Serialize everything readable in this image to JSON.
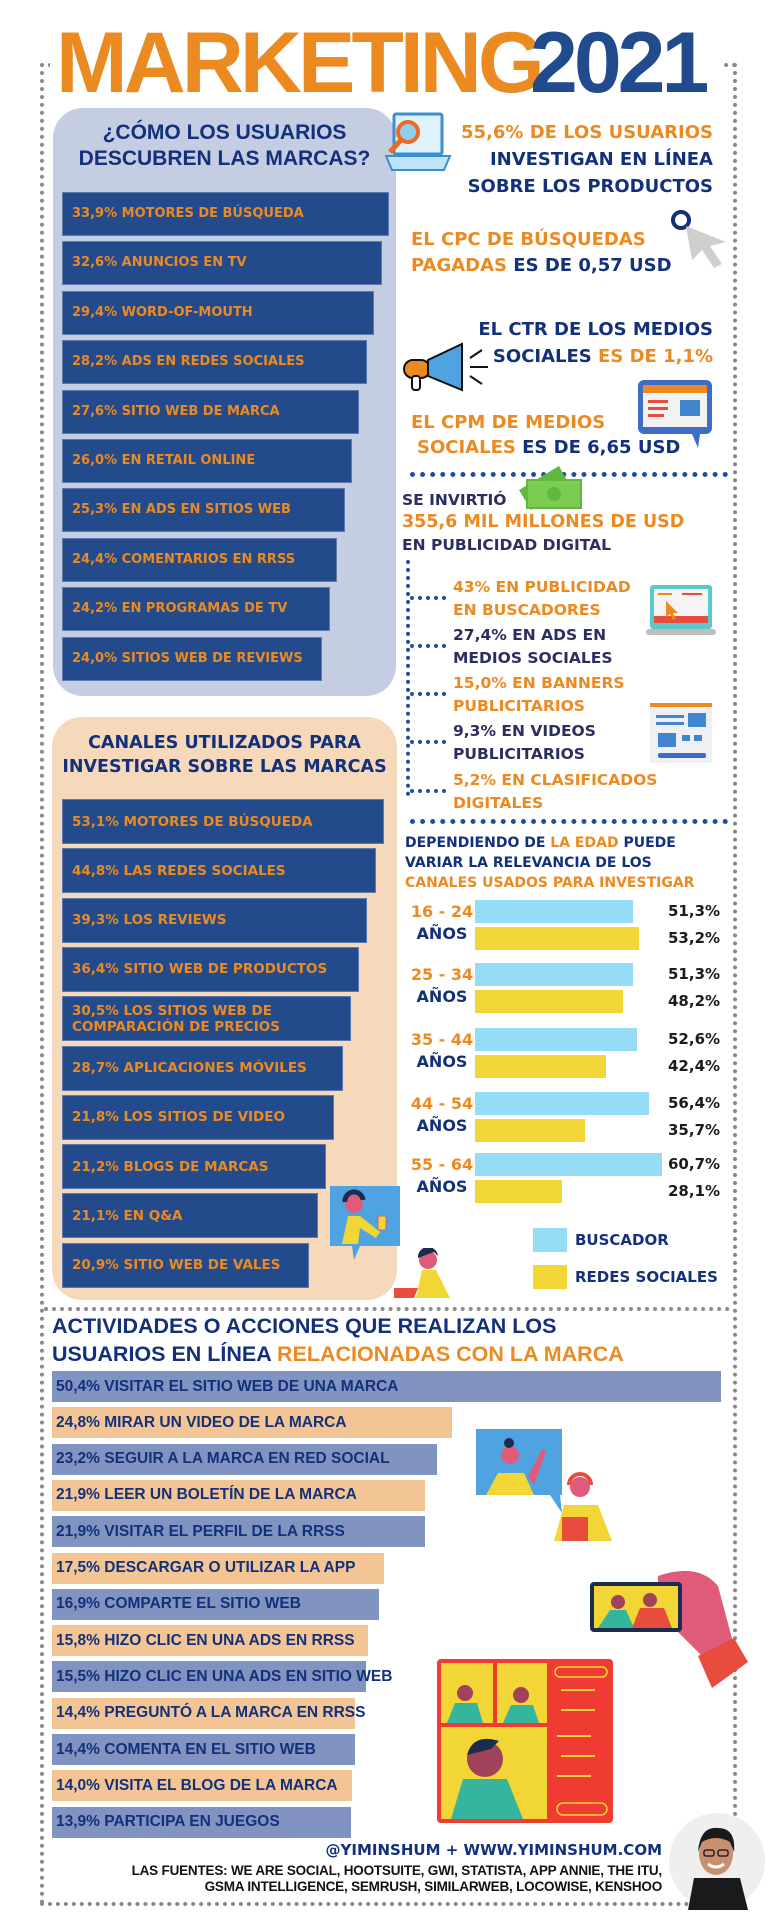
{
  "title": {
    "part1": "MARKETING",
    "part2": "2021"
  },
  "colors": {
    "orange": "#ec8a22",
    "navy": "#13307b",
    "bar_navy": "#234b8c",
    "panel_blue": "#c5cde2",
    "panel_peach": "#f6d8ba",
    "buscador": "#97dcf5",
    "redes": "#f2d636",
    "activity_blue": "#8194c1",
    "activity_peach": "#f4c594"
  },
  "discover": {
    "title_line1": "¿CÓMO LOS USUARIOS",
    "title_line2": "DESCUBREN LAS MARCAS?",
    "items": [
      {
        "pct": "33,9%",
        "label": "MOTORES DE BÚSQUEDA"
      },
      {
        "pct": "32,6%",
        "label": "ANUNCIOS EN TV"
      },
      {
        "pct": "29,4%",
        "label": "WORD-OF-MOUTH"
      },
      {
        "pct": "28,2%",
        "label": "ADS EN REDES SOCIALES"
      },
      {
        "pct": "27,6%",
        "label": "SITIO WEB DE MARCA"
      },
      {
        "pct": "26,0%",
        "label": "EN RETAIL ONLINE"
      },
      {
        "pct": "25,3%",
        "label": "EN ADS EN SITIOS WEB"
      },
      {
        "pct": "24,4%",
        "label": "COMENTARIOS EN RRSS"
      },
      {
        "pct": "24,2%",
        "label": "EN PROGRAMAS DE TV"
      },
      {
        "pct": "24,0%",
        "label": "SITIOS WEB DE REVIEWS"
      }
    ]
  },
  "channels": {
    "title_line1": "CANALES UTILIZADOS PARA",
    "title_line2": "INVESTIGAR SOBRE LAS MARCAS",
    "items": [
      {
        "pct": "53,1%",
        "label": "MOTORES DE BÚSQUEDA"
      },
      {
        "pct": "44,8%",
        "label": "LAS REDES SOCIALES"
      },
      {
        "pct": "39,3%",
        "label": "LOS REVIEWS"
      },
      {
        "pct": "36,4%",
        "label": "SITIO WEB DE PRODUCTOS"
      },
      {
        "pct": "30,5%",
        "label": "LOS SITIOS WEB DE",
        "label2": "COMPARACIÓN DE PRECIOS"
      },
      {
        "pct": "28,7%",
        "label": "APLICACIONES MÓVILES"
      },
      {
        "pct": "21,8%",
        "label": "LOS SITIOS DE VIDEO"
      },
      {
        "pct": "21,2%",
        "label": "BLOGS DE MARCAS"
      },
      {
        "pct": "21,1%",
        "label": "EN Q&A"
      },
      {
        "pct": "20,9%",
        "label": "SITIO WEB DE VALES"
      }
    ]
  },
  "stats": {
    "research": {
      "line1": "55,6% DE LOS USUARIOS",
      "line2": "INVESTIGAN EN LÍNEA",
      "line3": "SOBRE LOS PRODUCTOS"
    },
    "cpc": {
      "line1": "EL CPC DE BÚSQUEDAS",
      "line2_orange": "PAGADAS",
      "line2_navy": "ES DE 0,57 USD"
    },
    "ctr": {
      "line1": "EL CTR DE LOS MEDIOS",
      "line2_navy": "SOCIALES",
      "line2_orange": "ES DE 1,1%"
    },
    "cpm": {
      "line1": "EL CPM DE MEDIOS",
      "line2_orange": "SOCIALES",
      "line2_navy": "ES DE 6,65 USD"
    }
  },
  "investment": {
    "intro": "SE INVIRTIÓ",
    "amount": "355,6 MIL MILLONES DE USD",
    "outro": "EN PUBLICIDAD DIGITAL",
    "items": [
      {
        "line1": "43% EN PUBLICIDAD",
        "line2": "EN BUSCADORES",
        "color": "orange"
      },
      {
        "line1": "27,4% EN ADS EN",
        "line2": "MEDIOS SOCIALES",
        "color": "indigo"
      },
      {
        "line1": "15,0% EN BANNERS",
        "line2": "PUBLICITARIOS",
        "color": "orange"
      },
      {
        "line1": "9,3% EN VIDEOS",
        "line2": "PUBLICITARIOS",
        "color": "indigo"
      },
      {
        "line1": "5,2% EN CLASIFICADOS",
        "line2": "DIGITALES",
        "color": "orange"
      }
    ]
  },
  "age": {
    "intro_a": "DEPENDIENDO DE ",
    "intro_b": "LA EDAD",
    "intro_c": " PUEDE",
    "intro_line2": "VARIAR LA RELEVANCIA DE LOS",
    "intro_line3": "CANALES USADOS PARA INVESTIGAR",
    "groups": [
      {
        "range": "16 - 24",
        "unit": "AÑOS",
        "buscador": "51,3%",
        "redes": "53,2%"
      },
      {
        "range": "25 - 34",
        "unit": "AÑOS",
        "buscador": "51,3%",
        "redes": "48,2%"
      },
      {
        "range": "35 - 44",
        "unit": "AÑOS",
        "buscador": "52,6%",
        "redes": "42,4%"
      },
      {
        "range": "44 - 54",
        "unit": "AÑOS",
        "buscador": "56,4%",
        "redes": "35,7%"
      },
      {
        "range": "55 - 64",
        "unit": "AÑOS",
        "buscador": "60,7%",
        "redes": "28,1%"
      }
    ],
    "legend": {
      "buscador": "BUSCADOR",
      "redes": "REDES SOCIALES"
    }
  },
  "activities": {
    "header_line1": "ACTIVIDADES O ACCIONES QUE REALIZAN LOS",
    "header_line2_navy": "USUARIOS EN LÍNEA ",
    "header_line2_orange": "RELACIONADAS CON LA MARCA",
    "items": [
      {
        "pct": "50,4%",
        "label": "VISITAR EL SITIO WEB DE UNA MARCA"
      },
      {
        "pct": "24,8%",
        "label": "MIRAR UN VIDEO DE LA MARCA"
      },
      {
        "pct": "23,2%",
        "label": "SEGUIR A LA MARCA EN RED SOCIAL"
      },
      {
        "pct": "21,9%",
        "label": "LEER UN BOLETÍN DE LA MARCA"
      },
      {
        "pct": "21,9%",
        "label": "VISITAR EL PERFIL DE LA RRSS"
      },
      {
        "pct": "17,5%",
        "label": "DESCARGAR O UTILIZAR LA APP"
      },
      {
        "pct": "16,9%",
        "label": "COMPARTE EL SITIO WEB"
      },
      {
        "pct": "15,8%",
        "label": "HIZO CLIC EN UNA ADS EN RRSS"
      },
      {
        "pct": "15,5%",
        "label": "HIZO CLIC EN UNA ADS EN SITIO WEB"
      },
      {
        "pct": "14,4%",
        "label": "PREGUNTÓ A LA MARCA EN RRSS"
      },
      {
        "pct": "14,4%",
        "label": "COMENTA EN EL SITIO WEB"
      },
      {
        "pct": "14,0%",
        "label": "VISITA EL BLOG DE LA MARCA"
      },
      {
        "pct": "13,9%",
        "label": "PARTICIPA EN JUEGOS"
      }
    ]
  },
  "footer": {
    "handle": "@YIMINSHUM + WWW.YIMINSHUM.COM",
    "sources_line1": "LAS FUENTES: WE ARE SOCIAL, HOOTSUITE, GWI, STATISTA, APP ANNIE, THE ITU,",
    "sources_line2": "GSMA INTELLIGENCE, SEMRUSH, SIMILARWEB, LOCOWISE, KENSHOO"
  },
  "icons": [
    "laptop-search-icon",
    "cursor-icon",
    "megaphone-icon",
    "browser-chat-icon",
    "money-icon",
    "laptop-ad-icon",
    "webpage-icon",
    "headphones-person-illustration",
    "laptop-woman-illustration",
    "video-chat-illustration",
    "phone-hand-illustration",
    "video-conference-illustration",
    "author-photo"
  ]
}
